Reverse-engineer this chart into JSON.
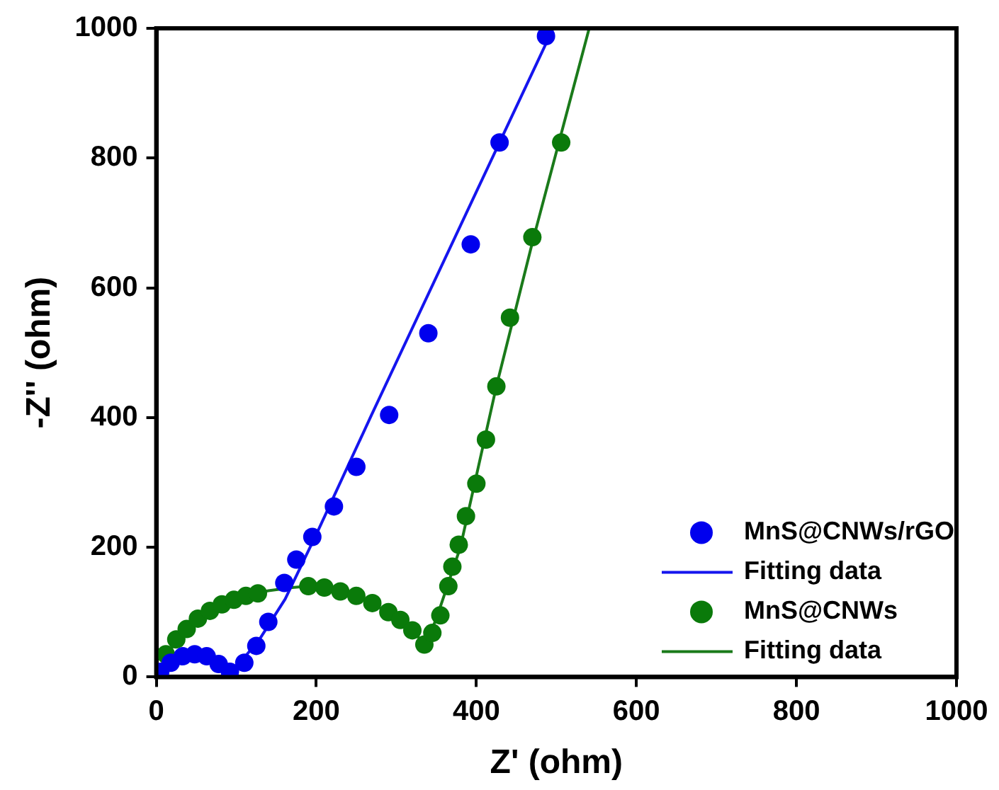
{
  "chart_data": {
    "type": "scatter",
    "xlabel": "Z' (ohm)",
    "ylabel": "-Z'' (ohm)",
    "xlim": [
      0,
      1000
    ],
    "ylim": [
      0,
      1000
    ],
    "xticks": [
      0,
      200,
      400,
      600,
      800,
      1000
    ],
    "yticks": [
      0,
      200,
      400,
      600,
      800,
      1000
    ],
    "grid": false,
    "legend": "bottom right",
    "series": [
      {
        "name": "MnS@CNWs/rGO",
        "marker": "circle",
        "color": "#0000ee",
        "x": [
          5,
          18,
          33,
          48,
          63,
          78,
          92,
          110,
          125,
          140,
          160,
          175,
          195,
          222,
          250,
          291,
          340,
          393,
          429,
          487
        ],
        "values": [
          8,
          22,
          32,
          35,
          32,
          20,
          8,
          22,
          48,
          85,
          145,
          181,
          216,
          263,
          324,
          404,
          530,
          667,
          824,
          988
        ]
      },
      {
        "name": "Fitting data",
        "type": "line",
        "marker": "none",
        "color": "#1515ee",
        "x": [
          0,
          10,
          25,
          45,
          65,
          85,
          100,
          130,
          161,
          200,
          269,
          400,
          496
        ],
        "values": [
          0,
          15,
          30,
          36,
          28,
          10,
          15,
          60,
          120,
          220,
          404,
          748,
          1000
        ]
      },
      {
        "name": "MnS@CNWs",
        "marker": "circle",
        "color": "#0a7a0a",
        "x": [
          12,
          25,
          38,
          52,
          67,
          82,
          97,
          112,
          127,
          190,
          210,
          230,
          250,
          270,
          290,
          305,
          320,
          335,
          345,
          355,
          365,
          370,
          378,
          387,
          400,
          412,
          425,
          442,
          470,
          506
        ],
        "values": [
          35,
          58,
          74,
          90,
          102,
          112,
          119,
          125,
          129,
          140,
          138,
          132,
          125,
          114,
          100,
          88,
          72,
          50,
          68,
          95,
          140,
          170,
          204,
          248,
          298,
          366,
          448,
          554,
          678,
          824
        ]
      },
      {
        "name": "Fitting data",
        "type": "line",
        "marker": "none",
        "color": "#1a7a1a",
        "x": [
          0,
          10,
          25,
          50,
          80,
          110,
          140,
          170,
          190,
          210,
          250,
          290,
          320,
          336,
          350,
          380,
          425,
          470,
          541
        ],
        "values": [
          0,
          28,
          55,
          88,
          112,
          125,
          133,
          138,
          140,
          138,
          125,
          100,
          72,
          50,
          90,
          200,
          448,
          670,
          1000
        ]
      }
    ]
  }
}
